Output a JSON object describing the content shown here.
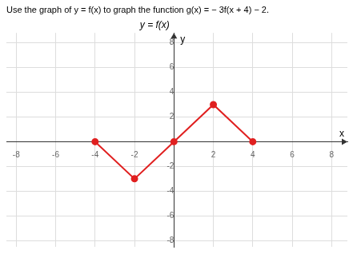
{
  "chart_data": {
    "type": "line",
    "title": "Use the graph of y = f(x) to graph the function g(x) = − 3f(x + 4) − 2.",
    "annotations": [
      "y = f(x)"
    ],
    "xlabel": "x",
    "ylabel": "y",
    "x": [
      -4,
      -2,
      0,
      2,
      4
    ],
    "values": [
      0,
      -3,
      0,
      3,
      0
    ],
    "color": "#e02020",
    "marker": "circle",
    "xlim": [
      -8.5,
      8.8
    ],
    "ylim": [
      -8.5,
      8.8
    ],
    "xticks": [
      -8,
      -6,
      -4,
      -2,
      2,
      4,
      6,
      8
    ],
    "yticks": [
      -8,
      -6,
      -4,
      -2,
      2,
      4,
      6,
      8
    ],
    "grid": true
  }
}
